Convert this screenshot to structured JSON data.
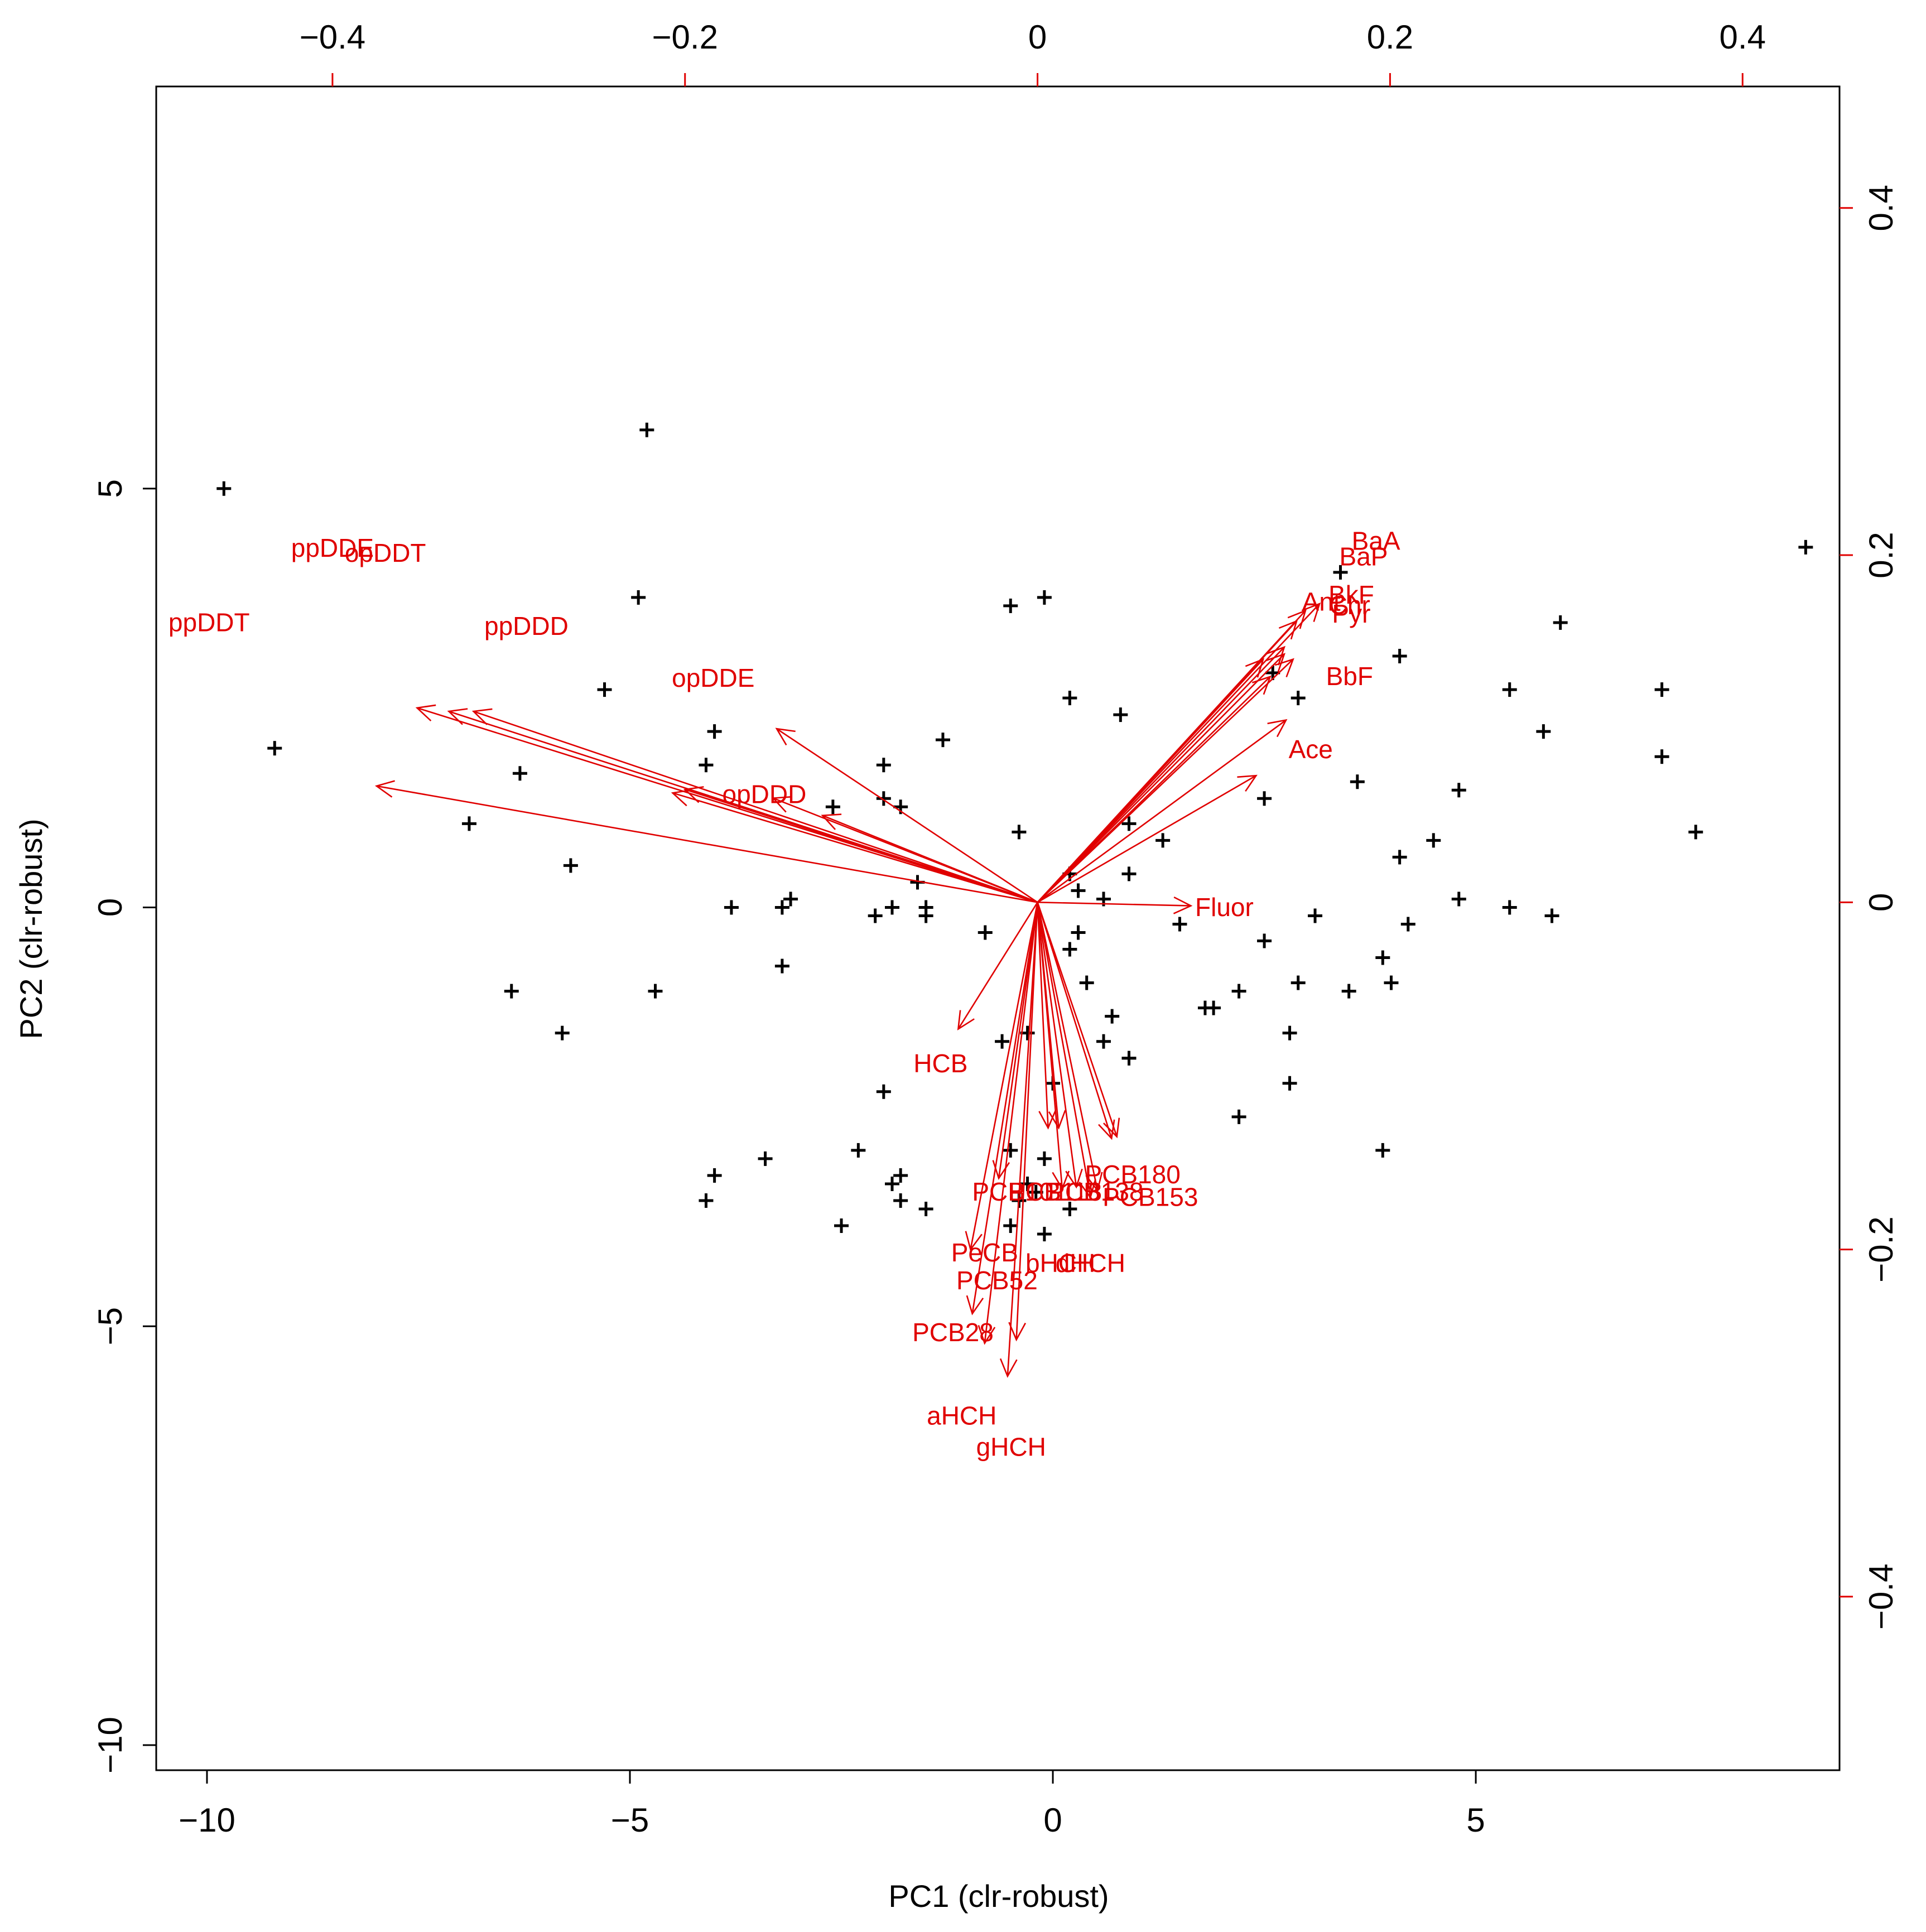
{
  "chart_data": {
    "type": "scatter",
    "subtype": "biplot",
    "title": "",
    "xlabel": "PC1 (clr-robust)",
    "ylabel": "PC2 (clr-robust)",
    "xlim": [
      -10.6,
      9.3
    ],
    "ylim": [
      -10.3,
      9.8
    ],
    "x_ticks": [
      -10,
      -5,
      0,
      5
    ],
    "y_ticks": [
      -10,
      -5,
      0,
      5
    ],
    "secondary_xlim": [
      -0.5,
      0.455
    ],
    "secondary_ylim": [
      -0.5,
      0.47
    ],
    "secondary_x_ticks": [
      -0.4,
      -0.2,
      0.0,
      0.2,
      0.4
    ],
    "secondary_y_ticks": [
      -0.4,
      -0.2,
      0.0,
      0.2,
      0.4
    ],
    "colors": {
      "points": "#000000",
      "loadings": "#e00000"
    },
    "grid": false,
    "legend": "none",
    "scores": [
      [
        -9.8,
        5.0
      ],
      [
        -4.8,
        5.7
      ],
      [
        -9.2,
        1.9
      ],
      [
        -6.3,
        1.6
      ],
      [
        -6.9,
        1.0
      ],
      [
        -5.7,
        0.5
      ],
      [
        -6.4,
        -1.0
      ],
      [
        -5.8,
        -1.5
      ],
      [
        -4.9,
        3.7
      ],
      [
        -5.3,
        2.6
      ],
      [
        -4.0,
        2.1
      ],
      [
        -4.1,
        1.7
      ],
      [
        -4.7,
        -1.0
      ],
      [
        -3.8,
        0.0
      ],
      [
        -3.2,
        0.0
      ],
      [
        -3.1,
        0.1
      ],
      [
        -3.2,
        -0.7
      ],
      [
        -2.6,
        1.2
      ],
      [
        -2.0,
        1.7
      ],
      [
        -2.0,
        1.3
      ],
      [
        -1.8,
        1.2
      ],
      [
        -1.6,
        0.3
      ],
      [
        -1.9,
        0.0
      ],
      [
        -2.1,
        -0.1
      ],
      [
        -1.5,
        0.0
      ],
      [
        -1.5,
        -0.1
      ],
      [
        -1.3,
        2.0
      ],
      [
        -2.0,
        -2.2
      ],
      [
        -0.5,
        3.6
      ],
      [
        -0.1,
        3.7
      ],
      [
        -0.4,
        0.9
      ],
      [
        -0.8,
        -0.3
      ],
      [
        0.2,
        2.5
      ],
      [
        0.8,
        2.3
      ],
      [
        0.9,
        1.0
      ],
      [
        1.3,
        0.8
      ],
      [
        0.2,
        0.4
      ],
      [
        0.9,
        0.4
      ],
      [
        0.3,
        0.2
      ],
      [
        0.6,
        0.1
      ],
      [
        0.3,
        -0.3
      ],
      [
        0.2,
        -0.5
      ],
      [
        0.4,
        -0.9
      ],
      [
        1.5,
        -0.2
      ],
      [
        0.7,
        -1.3
      ],
      [
        0.6,
        -1.6
      ],
      [
        0.9,
        -1.8
      ],
      [
        0.9,
        -1.8
      ],
      [
        0.0,
        -2.1
      ],
      [
        -0.3,
        -1.5
      ],
      [
        -0.6,
        -1.6
      ],
      [
        -0.5,
        -2.9
      ],
      [
        -0.1,
        -3.0
      ],
      [
        -0.3,
        -3.3
      ],
      [
        -0.2,
        -3.4
      ],
      [
        -0.4,
        -3.5
      ],
      [
        0.2,
        -3.6
      ],
      [
        -0.5,
        -3.8
      ],
      [
        -0.1,
        -3.9
      ],
      [
        1.8,
        -1.2
      ],
      [
        1.9,
        -1.2
      ],
      [
        2.2,
        -1.0
      ],
      [
        2.5,
        -0.4
      ],
      [
        2.2,
        -2.5
      ],
      [
        2.8,
        -1.5
      ],
      [
        2.9,
        -0.9
      ],
      [
        2.8,
        -2.1
      ],
      [
        3.1,
        -0.1
      ],
      [
        3.5,
        -1.0
      ],
      [
        3.9,
        -0.6
      ],
      [
        3.9,
        -2.9
      ],
      [
        4.0,
        -0.9
      ],
      [
        4.2,
        -0.2
      ],
      [
        4.1,
        0.6
      ],
      [
        4.5,
        0.8
      ],
      [
        4.8,
        1.4
      ],
      [
        4.8,
        0.1
      ],
      [
        5.4,
        0.0
      ],
      [
        5.8,
        2.1
      ],
      [
        5.9,
        -0.1
      ],
      [
        6.0,
        3.4
      ],
      [
        5.4,
        2.6
      ],
      [
        7.2,
        2.6
      ],
      [
        7.2,
        1.8
      ],
      [
        7.6,
        0.9
      ],
      [
        8.9,
        4.3
      ],
      [
        3.4,
        4.0
      ],
      [
        4.1,
        3.0
      ],
      [
        3.6,
        1.5
      ],
      [
        2.9,
        2.5
      ],
      [
        2.6,
        2.8
      ],
      [
        2.5,
        1.3
      ],
      [
        -4.0,
        -3.2
      ],
      [
        -4.1,
        -3.5
      ],
      [
        -3.4,
        -3.0
      ],
      [
        -2.5,
        -3.8
      ],
      [
        -2.3,
        -2.9
      ],
      [
        -1.9,
        -3.3
      ],
      [
        -1.8,
        -3.2
      ],
      [
        -1.8,
        -3.5
      ],
      [
        -1.5,
        -3.6
      ]
    ],
    "loadings": [
      {
        "name": "ppDDE",
        "x": -0.352,
        "y": 0.112,
        "label_x": -0.4,
        "label_y": 0.203
      },
      {
        "name": "opDDT",
        "x": -0.334,
        "y": 0.11,
        "label_x": -0.37,
        "label_y": 0.2
      },
      {
        "name": "ppDDT",
        "x": -0.375,
        "y": 0.067,
        "label_x": -0.47,
        "label_y": 0.16
      },
      {
        "name": "ppDDD",
        "x": -0.32,
        "y": 0.11,
        "label_x": -0.29,
        "label_y": 0.158
      },
      {
        "name": "opDDE",
        "x": -0.207,
        "y": 0.063,
        "label_x": -0.184,
        "label_y": 0.128
      },
      {
        "name": "",
        "x": -0.148,
        "y": 0.1,
        "label_x": null,
        "label_y": null
      },
      {
        "name": "",
        "x": -0.2,
        "y": 0.065,
        "label_x": null,
        "label_y": null
      },
      {
        "name": "opDDD",
        "x": -0.122,
        "y": 0.05,
        "label_x": -0.155,
        "label_y": 0.061
      },
      {
        "name": "",
        "x": -0.15,
        "y": 0.06,
        "label_x": null,
        "label_y": null
      },
      {
        "name": "BaA",
        "x": 0.16,
        "y": 0.172,
        "label_x": 0.192,
        "label_y": 0.207
      },
      {
        "name": "BaP",
        "x": 0.152,
        "y": 0.168,
        "label_x": 0.185,
        "label_y": 0.198
      },
      {
        "name": "Ant",
        "x": 0.147,
        "y": 0.162,
        "label_x": 0.161,
        "label_y": 0.172
      },
      {
        "name": "BkF",
        "x": 0.14,
        "y": 0.147,
        "label_x": 0.178,
        "label_y": 0.176
      },
      {
        "name": "Chr",
        "x": 0.145,
        "y": 0.14,
        "label_x": 0.177,
        "label_y": 0.17
      },
      {
        "name": "Pyr",
        "x": 0.14,
        "y": 0.143,
        "label_x": 0.178,
        "label_y": 0.165
      },
      {
        "name": "",
        "x": 0.128,
        "y": 0.14,
        "label_x": null,
        "label_y": null
      },
      {
        "name": "BbF",
        "x": 0.132,
        "y": 0.13,
        "label_x": 0.177,
        "label_y": 0.129
      },
      {
        "name": "Ace",
        "x": 0.141,
        "y": 0.105,
        "label_x": 0.155,
        "label_y": 0.087
      },
      {
        "name": "",
        "x": 0.124,
        "y": 0.073,
        "label_x": null,
        "label_y": null
      },
      {
        "name": "Fluor",
        "x": 0.087,
        "y": -0.002,
        "label_x": 0.106,
        "label_y": -0.004
      },
      {
        "name": "HCB",
        "x": -0.045,
        "y": -0.073,
        "label_x": -0.055,
        "label_y": -0.094
      },
      {
        "name": "PCB180",
        "x": 0.022,
        "y": -0.164,
        "label_x": 0.054,
        "label_y": -0.158
      },
      {
        "name": "PCB153",
        "x": 0.042,
        "y": -0.136,
        "label_x": 0.064,
        "label_y": -0.171
      },
      {
        "name": "PCB138",
        "x": 0.034,
        "y": -0.166,
        "label_x": 0.033,
        "label_y": -0.168
      },
      {
        "name": "PCB118",
        "x": 0.045,
        "y": -0.135,
        "label_x": 0.01,
        "label_y": -0.168
      },
      {
        "name": "PCB101",
        "x": 0.014,
        "y": -0.165,
        "label_x": -0.01,
        "label_y": -0.168
      },
      {
        "name": "",
        "x": 0.006,
        "y": -0.13,
        "label_x": null,
        "label_y": null
      },
      {
        "name": "PeCB",
        "x": -0.022,
        "y": -0.159,
        "label_x": -0.03,
        "label_y": -0.203
      },
      {
        "name": "bHCH",
        "x": 0.012,
        "y": -0.13,
        "label_x": 0.013,
        "label_y": -0.209
      },
      {
        "name": "dHCH",
        "x": 0.03,
        "y": -0.17,
        "label_x": 0.03,
        "label_y": -0.209
      },
      {
        "name": "PCB52",
        "x": -0.038,
        "y": -0.2,
        "label_x": -0.023,
        "label_y": -0.219
      },
      {
        "name": "PCB28",
        "x": -0.037,
        "y": -0.237,
        "label_x": -0.048,
        "label_y": -0.249
      },
      {
        "name": "",
        "x": -0.012,
        "y": -0.252,
        "label_x": null,
        "label_y": null
      },
      {
        "name": "aHCH",
        "x": -0.03,
        "y": -0.254,
        "label_x": -0.043,
        "label_y": -0.297
      },
      {
        "name": "gHCH",
        "x": -0.017,
        "y": -0.273,
        "label_x": -0.015,
        "label_y": -0.315
      }
    ]
  }
}
